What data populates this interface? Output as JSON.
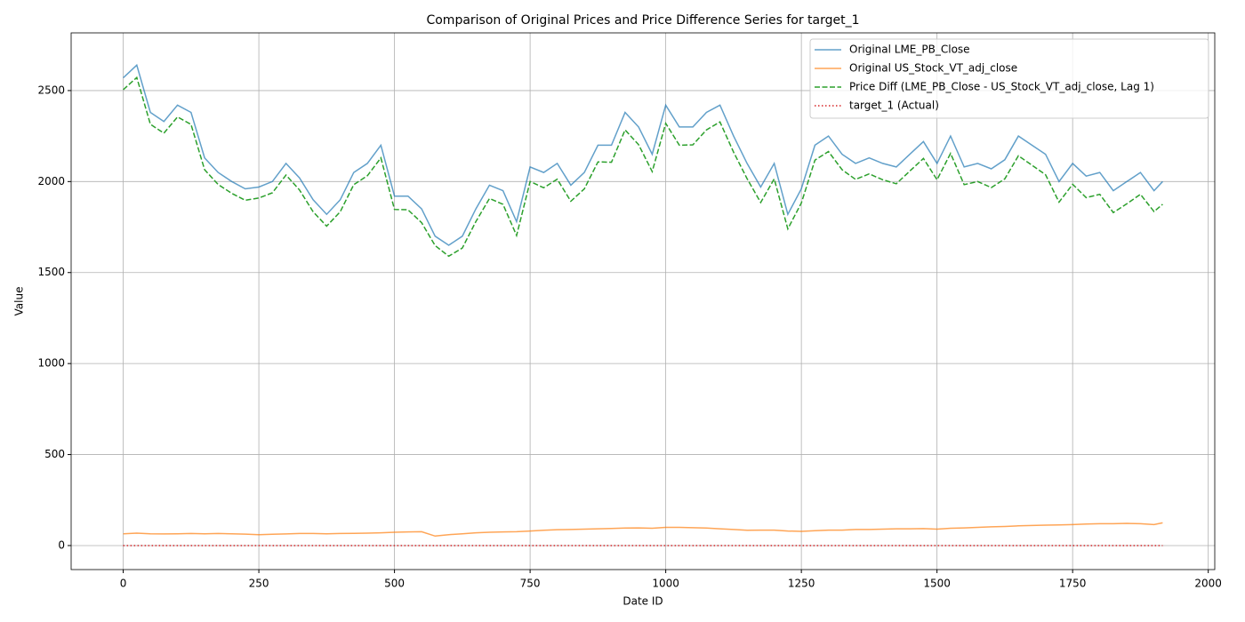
{
  "chart_data": {
    "type": "line",
    "title": "Comparison of Original Prices and Price Difference Series for target_1",
    "xlabel": "Date ID",
    "ylabel": "Value",
    "x": [
      0,
      25,
      50,
      75,
      100,
      125,
      150,
      175,
      200,
      225,
      250,
      275,
      300,
      325,
      350,
      375,
      400,
      425,
      450,
      475,
      500,
      525,
      550,
      575,
      600,
      625,
      650,
      675,
      700,
      725,
      750,
      775,
      800,
      825,
      850,
      875,
      900,
      925,
      950,
      975,
      1000,
      1025,
      1050,
      1075,
      1100,
      1125,
      1150,
      1175,
      1200,
      1225,
      1250,
      1275,
      1300,
      1325,
      1350,
      1375,
      1400,
      1425,
      1450,
      1475,
      1500,
      1525,
      1550,
      1575,
      1600,
      1625,
      1650,
      1675,
      1700,
      1725,
      1750,
      1775,
      1800,
      1825,
      1850,
      1875,
      1900,
      1916
    ],
    "series": [
      {
        "name": "Original LME_PB_Close",
        "color": "#1f77b4",
        "dash": "solid",
        "opacity": 0.7,
        "values": [
          2570,
          2640,
          2380,
          2330,
          2420,
          2380,
          2130,
          2050,
          2000,
          1960,
          1970,
          2000,
          2100,
          2020,
          1900,
          1820,
          1900,
          2050,
          2100,
          2200,
          1920,
          1920,
          1850,
          1700,
          1650,
          1700,
          1850,
          1980,
          1950,
          1780,
          2080,
          2050,
          2100,
          1980,
          2050,
          2200,
          2200,
          2380,
          2300,
          2150,
          2420,
          2300,
          2300,
          2380,
          2420,
          2250,
          2100,
          1970,
          2100,
          1820,
          1960,
          2200,
          2250,
          2150,
          2100,
          2130,
          2100,
          2080,
          2150,
          2220,
          2100,
          2250,
          2080,
          2100,
          2070,
          2120,
          2250,
          2200,
          2150,
          2000,
          2100,
          2030,
          2050,
          1950,
          2000,
          2050,
          1950,
          2000
        ]
      },
      {
        "name": "Original US_Stock_VT_adj_close",
        "color": "#ff7f0e",
        "dash": "solid",
        "opacity": 0.7,
        "values": [
          65,
          68,
          65,
          64,
          65,
          66,
          65,
          66,
          65,
          63,
          60,
          62,
          64,
          66,
          66,
          65,
          66,
          67,
          68,
          70,
          73,
          75,
          76,
          52,
          60,
          65,
          70,
          73,
          75,
          76,
          80,
          84,
          87,
          88,
          90,
          92,
          94,
          96,
          97,
          95,
          100,
          100,
          98,
          96,
          92,
          88,
          84,
          85,
          85,
          80,
          78,
          82,
          85,
          85,
          88,
          88,
          90,
          92,
          92,
          93,
          90,
          95,
          97,
          100,
          103,
          105,
          108,
          110,
          112,
          113,
          115,
          118,
          120,
          120,
          122,
          120,
          115,
          125
        ]
      },
      {
        "name": "Price Diff (LME_PB_Close - US_Stock_VT_adj_close, Lag 1)",
        "color": "#2ca02c",
        "dash": "dashed",
        "opacity": 1,
        "values": [
          2505,
          2572,
          2315,
          2266,
          2355,
          2314,
          2065,
          1984,
          1935,
          1897,
          1910,
          1938,
          2036,
          1954,
          1834,
          1755,
          1834,
          1983,
          2032,
          2130,
          1847,
          1845,
          1774,
          1648,
          1590,
          1635,
          1780,
          1907,
          1875,
          1704,
          2000,
          1966,
          2013,
          1892,
          1960,
          2108,
          2106,
          2284,
          2203,
          2055,
          2320,
          2200,
          2202,
          2284,
          2328,
          2162,
          2016,
          1885,
          2015,
          1740,
          1882,
          2118,
          2165,
          2065,
          2012,
          2042,
          2010,
          1988,
          2058,
          2127,
          2010,
          2155,
          1983,
          2000,
          1967,
          2015,
          2142,
          2090,
          2038,
          1887,
          1985,
          1912,
          1930,
          1830,
          1878,
          1930,
          1835,
          1875
        ]
      },
      {
        "name": "target_1 (Actual)",
        "color": "#d62728",
        "dash": "dotted",
        "opacity": 1,
        "values": [
          0,
          0,
          0,
          0,
          0,
          0,
          0,
          0,
          0,
          0,
          0,
          0,
          0,
          0,
          0,
          0,
          0,
          0,
          0,
          0,
          0,
          0,
          0,
          0,
          0,
          0,
          0,
          0,
          0,
          0,
          0,
          0,
          0,
          0,
          0,
          0,
          0,
          0,
          0,
          0,
          0,
          0,
          0,
          0,
          0,
          0,
          0,
          0,
          0,
          0,
          0,
          0,
          0,
          0,
          0,
          0,
          0,
          0,
          0,
          0,
          0,
          0,
          0,
          0,
          0,
          0,
          0,
          0,
          0,
          0,
          0,
          0,
          0,
          0,
          0,
          0,
          0,
          0
        ]
      }
    ],
    "xlim": [
      -96,
      2012
    ],
    "xticks": [
      0,
      250,
      500,
      750,
      1000,
      1250,
      1500,
      1750,
      2000
    ],
    "ylim": [
      -132,
      2817
    ],
    "yticks": [
      0,
      500,
      1000,
      1500,
      2000,
      2500
    ],
    "grid": true,
    "legend": "upper right"
  }
}
